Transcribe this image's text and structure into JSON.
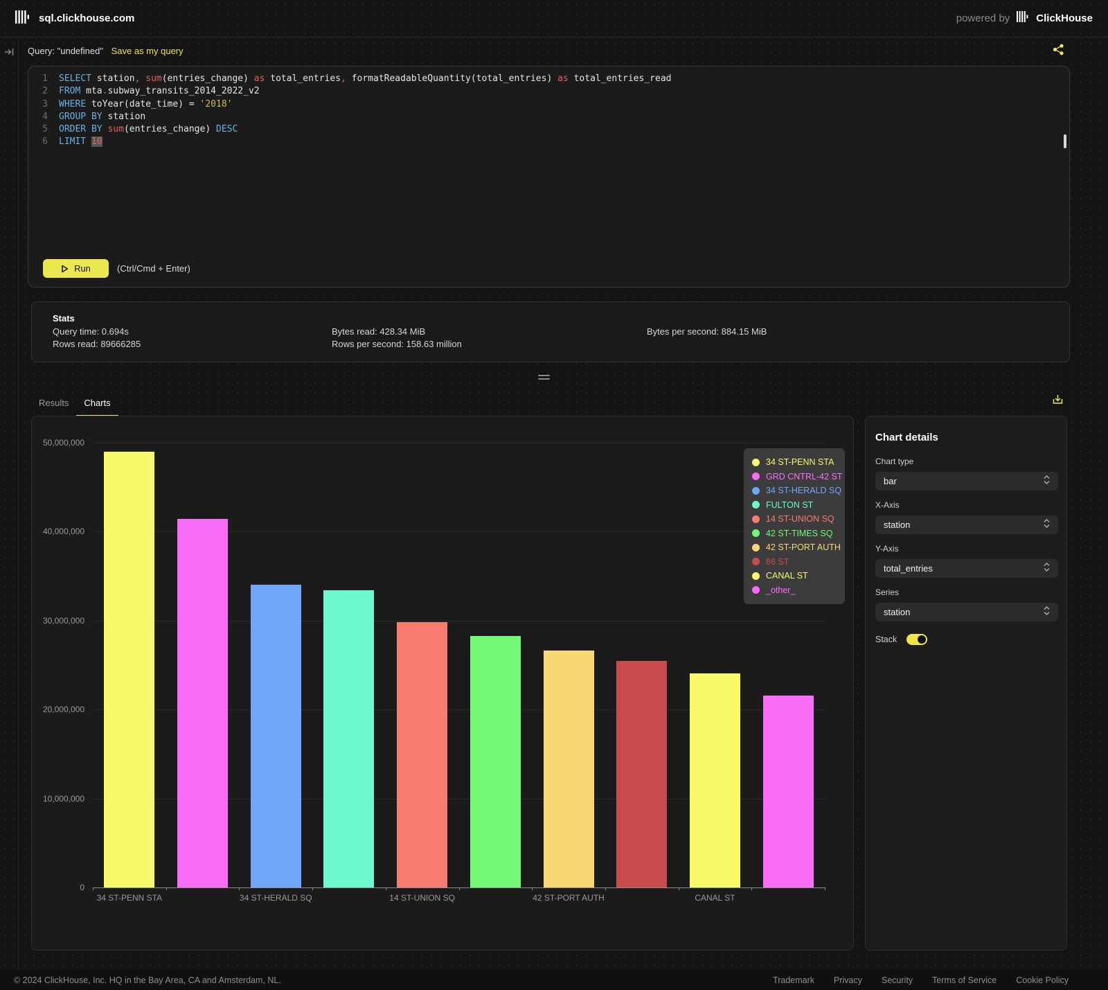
{
  "topbar": {
    "site": "sql.clickhouse.com",
    "powered_by": "powered by",
    "brand": "ClickHouse"
  },
  "query": {
    "label": "Query: \"undefined\"",
    "save_link": "Save as my query",
    "run_label": "Run",
    "shortcut": "(Ctrl/Cmd + Enter)",
    "lines": [
      {
        "num": "1",
        "tokens": [
          {
            "c": "kw",
            "t": "SELECT"
          },
          {
            "c": "id",
            "t": " station"
          },
          {
            "c": "op",
            "t": ", "
          },
          {
            "c": "fn",
            "t": "sum"
          },
          {
            "c": "id",
            "t": "(entries_change) "
          },
          {
            "c": "op",
            "t": "as"
          },
          {
            "c": "id",
            "t": " total_entries"
          },
          {
            "c": "op",
            "t": ", "
          },
          {
            "c": "id",
            "t": "formatReadableQuantity(total_entries) "
          },
          {
            "c": "op",
            "t": "as"
          },
          {
            "c": "id",
            "t": " total_entries_read"
          }
        ]
      },
      {
        "num": "2",
        "tokens": [
          {
            "c": "kw",
            "t": "FROM"
          },
          {
            "c": "id",
            "t": " mta"
          },
          {
            "c": "op",
            "t": "."
          },
          {
            "c": "id",
            "t": "subway_transits_2014_2022_v2"
          }
        ]
      },
      {
        "num": "3",
        "tokens": [
          {
            "c": "kw",
            "t": "WHERE"
          },
          {
            "c": "id",
            "t": " toYear(date_time) = "
          },
          {
            "c": "str",
            "t": "'2018'"
          }
        ]
      },
      {
        "num": "4",
        "tokens": [
          {
            "c": "kw",
            "t": "GROUP BY"
          },
          {
            "c": "id",
            "t": " station"
          }
        ]
      },
      {
        "num": "5",
        "tokens": [
          {
            "c": "kw",
            "t": "ORDER BY"
          },
          {
            "c": "id",
            "t": " "
          },
          {
            "c": "fn",
            "t": "sum"
          },
          {
            "c": "id",
            "t": "(entries_change) "
          },
          {
            "c": "kw",
            "t": "DESC"
          }
        ]
      },
      {
        "num": "6",
        "tokens": [
          {
            "c": "kw",
            "t": "LIMIT"
          },
          {
            "c": "id",
            "t": " "
          },
          {
            "c": "sel",
            "t": "10"
          }
        ]
      }
    ]
  },
  "stats": {
    "title": "Stats",
    "columns": [
      {
        "lines": [
          "Query time: 0.694s",
          "Rows read: 89666285"
        ]
      },
      {
        "lines": [
          "Bytes read: 428.34 MiB",
          "Rows per second: 158.63 million"
        ]
      },
      {
        "lines": [
          "Bytes per second: 884.15 MiB"
        ]
      }
    ]
  },
  "tabs": [
    {
      "label": "Results",
      "active": false
    },
    {
      "label": "Charts",
      "active": true
    }
  ],
  "chart_data": {
    "type": "bar",
    "title": "",
    "xlabel": "station",
    "ylabel": "total_entries",
    "ylim": [
      0,
      50000000
    ],
    "ytick_interval": 10000000,
    "ytick_labels": [
      "0",
      "10,000,000",
      "20,000,000",
      "30,000,000",
      "40,000,000",
      "50,000,000"
    ],
    "grid": true,
    "legend_position": "top-right",
    "categories": [
      "34 ST-PENN STA",
      "GRD CNTRL-42 ST",
      "34 ST-HERALD SQ",
      "FULTON ST",
      "14 ST-UNION SQ",
      "42 ST-TIMES SQ",
      "42 ST-PORT AUTH",
      "86 ST",
      "CANAL ST",
      "_other_"
    ],
    "values": [
      49000000,
      41400000,
      34000000,
      33400000,
      29800000,
      28300000,
      26600000,
      25500000,
      24100000,
      21600000
    ],
    "colors": [
      "#f9f76a",
      "#f96ef9",
      "#72a6f9",
      "#6cf9cf",
      "#f97c70",
      "#72f975",
      "#f9d873",
      "#c94b4b",
      "#f9f76a",
      "#f96ef9"
    ],
    "x_label_indices": [
      0,
      2,
      4,
      6,
      8
    ]
  },
  "chart_details": {
    "title": "Chart details",
    "fields": [
      {
        "label": "Chart type",
        "value": "bar"
      },
      {
        "label": "X-Axis",
        "value": "station"
      },
      {
        "label": "Y-Axis",
        "value": "total_entries"
      },
      {
        "label": "Series",
        "value": "station"
      }
    ],
    "stack_label": "Stack",
    "stack_on": true
  },
  "footer": {
    "copyright": "© 2024 ClickHouse, Inc. HQ in the Bay Area, CA and Amsterdam, NL.",
    "links": [
      "Trademark",
      "Privacy",
      "Security",
      "Terms of Service",
      "Cookie Policy"
    ]
  },
  "colors": {
    "accent_yellow": "#f0e643",
    "keyword_blue": "#6ab1de",
    "operator_red": "#e0635c",
    "string_yellow": "#cdbd55"
  }
}
